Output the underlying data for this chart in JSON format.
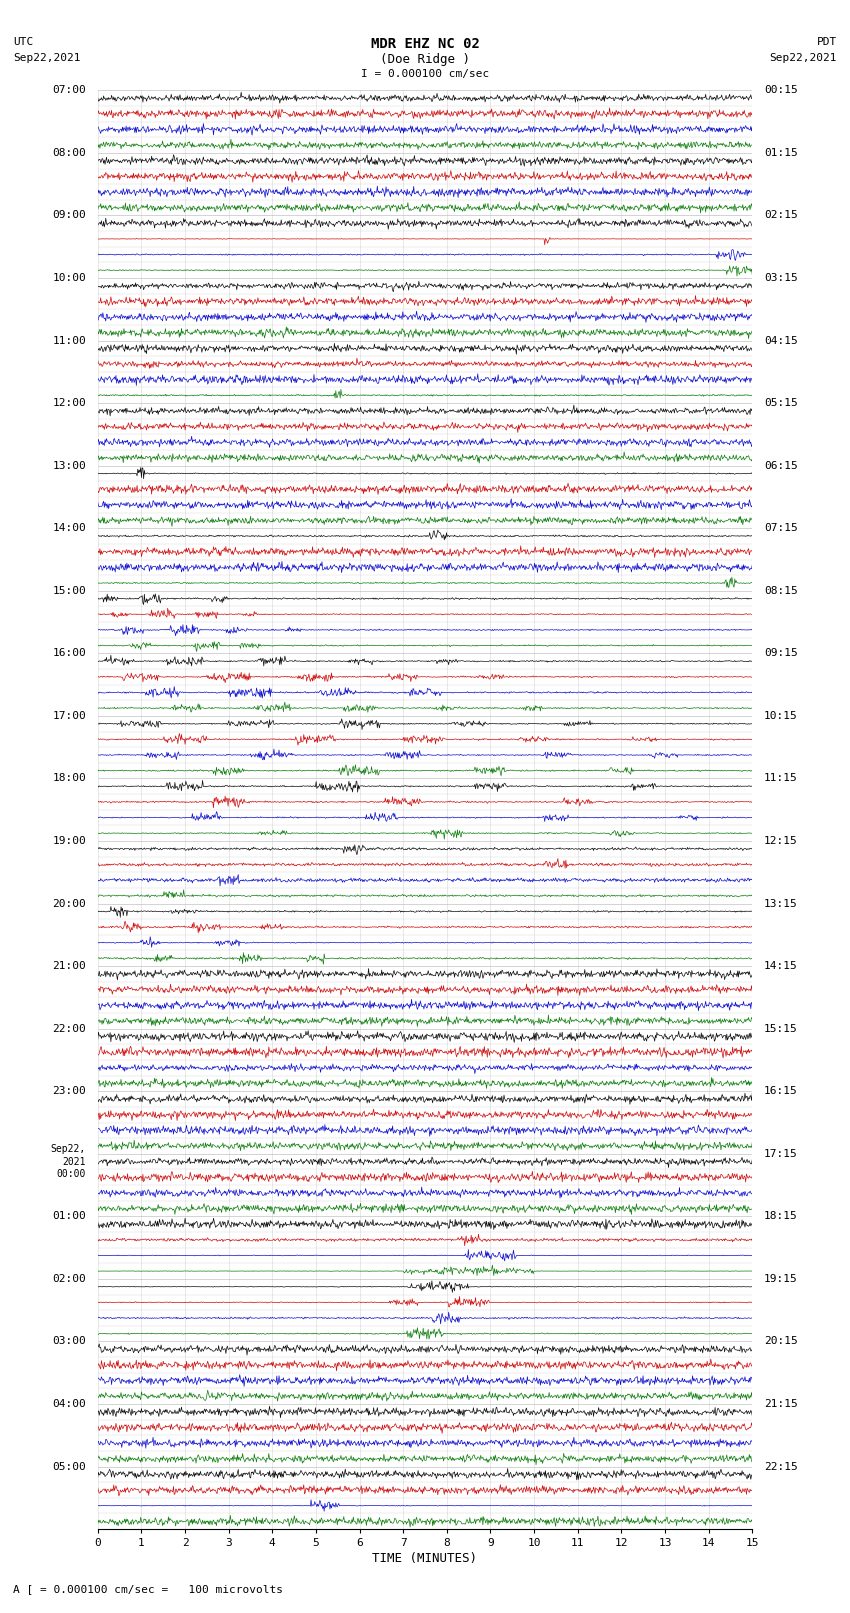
{
  "title_line1": "MDR EHZ NC 02",
  "title_line2": "(Doe Ridge )",
  "scale_text": "I = 0.000100 cm/sec",
  "left_label_top": "UTC",
  "left_label_date": "Sep22,2021",
  "right_label_top": "PDT",
  "right_label_date": "Sep22,2021",
  "bottom_label": "TIME (MINUTES)",
  "footer_text": "A [ = 0.000100 cm/sec =   100 microvolts",
  "xlabel_ticks": [
    0,
    1,
    2,
    3,
    4,
    5,
    6,
    7,
    8,
    9,
    10,
    11,
    12,
    13,
    14,
    15
  ],
  "background_color": "#ffffff",
  "trace_color_black": "#000000",
  "trace_color_red": "#cc0000",
  "trace_color_blue": "#0000cc",
  "trace_color_green": "#007700",
  "grid_color": "#aaaaaa",
  "figwidth": 8.5,
  "figheight": 16.13,
  "dpi": 100
}
